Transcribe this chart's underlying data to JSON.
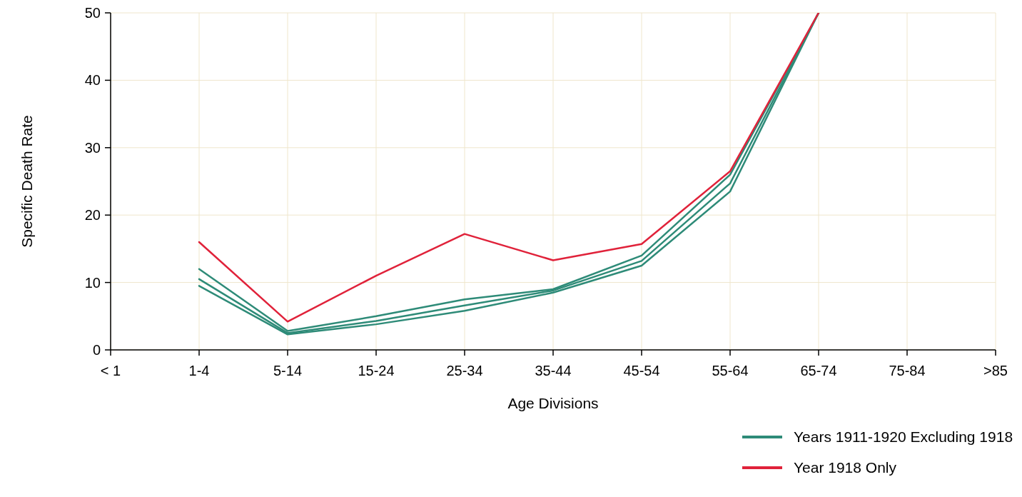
{
  "chart_data": {
    "type": "line",
    "xlabel": "Age Divisions",
    "ylabel": "Specific Death Rate",
    "categories": [
      "< 1",
      "1-4",
      "5-14",
      "15-24",
      "25-34",
      "35-44",
      "45-54",
      "55-64",
      "65-74",
      "75-84",
      ">85"
    ],
    "ylim": [
      0,
      50
    ],
    "yticks": [
      0,
      10,
      20,
      30,
      40,
      50
    ],
    "grid": true,
    "legend": "bottom right",
    "series": [
      {
        "name": "Years 1911-1920 Excluding 1918",
        "color": "#2e8b78",
        "values": [
          null,
          9.5,
          2.3,
          3.8,
          5.8,
          8.5,
          12.5,
          23.5,
          50,
          null,
          null
        ]
      },
      {
        "color": "#2e8b78",
        "values": [
          null,
          10.5,
          2.5,
          4.3,
          6.6,
          8.8,
          13.2,
          24.7,
          50,
          null,
          null
        ]
      },
      {
        "color": "#2e8b78",
        "values": [
          null,
          12,
          2.8,
          5,
          7.5,
          9,
          14,
          26,
          50,
          null,
          null
        ]
      },
      {
        "name": "Year 1918 Only",
        "color": "#e0223a",
        "values": [
          null,
          16,
          4.2,
          11,
          17.2,
          13.3,
          15.7,
          26.5,
          50,
          null,
          null
        ]
      }
    ]
  }
}
